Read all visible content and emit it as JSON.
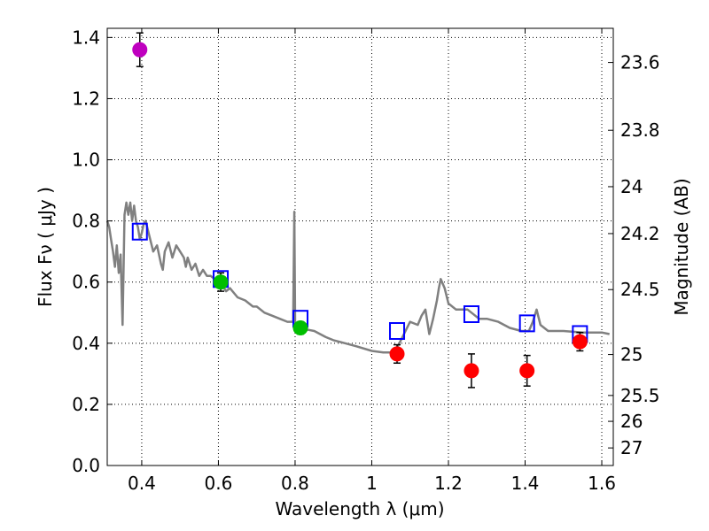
{
  "chart_data": {
    "type": "scatter",
    "x_axis": {
      "label": "Wavelength  λ (μm)",
      "range": [
        0.31,
        1.63
      ],
      "ticks": [
        0.4,
        0.6,
        0.8,
        1.0,
        1.2,
        1.4,
        1.6
      ],
      "tick_labels": [
        "0.4",
        "0.6",
        "0.8",
        "1",
        "1.2",
        "1.4",
        "1.6"
      ]
    },
    "y_axis": {
      "label": "Flux  Fν  ( μJy )",
      "range": [
        0.0,
        1.43
      ],
      "ticks": [
        0.0,
        0.2,
        0.4,
        0.6,
        0.8,
        1.0,
        1.2,
        1.4
      ],
      "tick_labels": [
        "0.0",
        "0.2",
        "0.4",
        "0.6",
        "0.8",
        "1.0",
        "1.2",
        "1.4"
      ]
    },
    "right_axis": {
      "label": "Magnitude (AB)",
      "tick_labels": [
        "23.6",
        "23.8",
        "24",
        "24.2",
        "24.5",
        "25",
        "25.5",
        "26",
        "27"
      ],
      "tick_flux": [
        1.3183,
        1.0965,
        0.912,
        0.7586,
        0.5754,
        0.3631,
        0.2291,
        0.1445,
        0.0575
      ]
    },
    "grid": true,
    "observed_points": [
      {
        "x": 0.395,
        "y": 1.36,
        "err": 0.055,
        "color": "#bf00bf"
      },
      {
        "x": 0.606,
        "y": 0.6,
        "err": 0.03,
        "color": "#00bf00"
      },
      {
        "x": 0.814,
        "y": 0.45,
        "err": 0.02,
        "color": "#00bf00"
      },
      {
        "x": 1.066,
        "y": 0.365,
        "err": 0.03,
        "color": "#ff0000"
      },
      {
        "x": 1.26,
        "y": 0.31,
        "err": 0.055,
        "color": "#ff0000"
      },
      {
        "x": 1.405,
        "y": 0.31,
        "err": 0.05,
        "color": "#ff0000"
      },
      {
        "x": 1.543,
        "y": 0.405,
        "err": 0.03,
        "color": "#ff0000"
      }
    ],
    "model_points": {
      "color": "#0000ff",
      "x": [
        0.395,
        0.606,
        0.814,
        1.066,
        1.26,
        1.405,
        1.543
      ],
      "y": [
        0.765,
        0.61,
        0.48,
        0.44,
        0.495,
        0.465,
        0.43
      ]
    },
    "sed_spectrum": {
      "color": "#808080",
      "x": [
        0.31,
        0.315,
        0.32,
        0.325,
        0.33,
        0.335,
        0.34,
        0.345,
        0.35,
        0.355,
        0.36,
        0.365,
        0.37,
        0.375,
        0.38,
        0.385,
        0.39,
        0.395,
        0.4,
        0.405,
        0.41,
        0.42,
        0.43,
        0.44,
        0.45,
        0.455,
        0.46,
        0.47,
        0.48,
        0.49,
        0.5,
        0.51,
        0.515,
        0.52,
        0.53,
        0.54,
        0.55,
        0.56,
        0.57,
        0.58,
        0.59,
        0.6,
        0.61,
        0.62,
        0.63,
        0.65,
        0.67,
        0.69,
        0.7,
        0.72,
        0.74,
        0.76,
        0.78,
        0.79,
        0.795,
        0.798,
        0.8,
        0.802,
        0.805,
        0.81,
        0.82,
        0.83,
        0.85,
        0.88,
        0.9,
        0.93,
        0.96,
        1.0,
        1.03,
        1.06,
        1.08,
        1.1,
        1.12,
        1.13,
        1.14,
        1.15,
        1.16,
        1.17,
        1.175,
        1.18,
        1.19,
        1.2,
        1.22,
        1.25,
        1.28,
        1.3,
        1.33,
        1.36,
        1.39,
        1.41,
        1.42,
        1.43,
        1.44,
        1.46,
        1.5,
        1.55,
        1.6,
        1.62
      ],
      "y": [
        0.8,
        0.78,
        0.74,
        0.7,
        0.65,
        0.72,
        0.63,
        0.69,
        0.46,
        0.82,
        0.86,
        0.82,
        0.86,
        0.8,
        0.85,
        0.8,
        0.78,
        0.74,
        0.76,
        0.79,
        0.8,
        0.75,
        0.7,
        0.72,
        0.66,
        0.64,
        0.7,
        0.73,
        0.68,
        0.72,
        0.7,
        0.68,
        0.65,
        0.68,
        0.64,
        0.66,
        0.62,
        0.64,
        0.62,
        0.62,
        0.61,
        0.6,
        0.59,
        0.57,
        0.58,
        0.55,
        0.54,
        0.52,
        0.52,
        0.5,
        0.49,
        0.48,
        0.47,
        0.47,
        0.47,
        0.83,
        0.46,
        0.46,
        0.46,
        0.46,
        0.45,
        0.445,
        0.44,
        0.42,
        0.41,
        0.4,
        0.39,
        0.375,
        0.37,
        0.37,
        0.42,
        0.47,
        0.46,
        0.49,
        0.51,
        0.43,
        0.48,
        0.54,
        0.58,
        0.61,
        0.58,
        0.53,
        0.51,
        0.51,
        0.48,
        0.48,
        0.47,
        0.45,
        0.44,
        0.44,
        0.47,
        0.51,
        0.46,
        0.44,
        0.44,
        0.435,
        0.435,
        0.43
      ]
    }
  }
}
